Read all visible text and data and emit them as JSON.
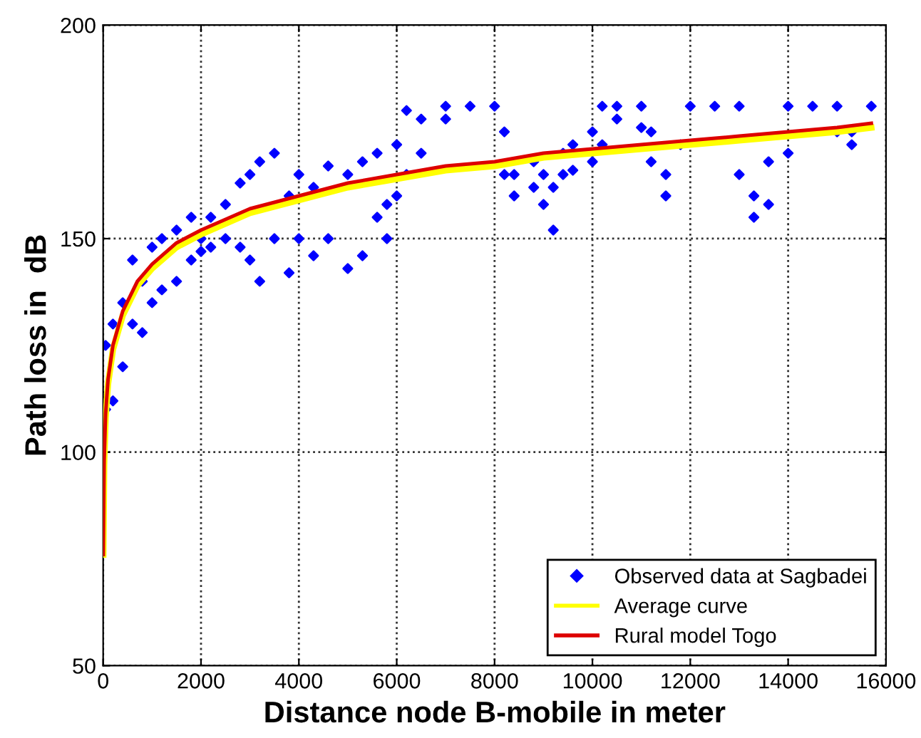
{
  "chart_data": {
    "type": "scatter",
    "xlabel": "Distance node B-mobile in meter",
    "ylabel": "Path loss in  dB",
    "xlim": [
      0,
      16000
    ],
    "ylim": [
      50,
      200
    ],
    "xticks": [
      0,
      2000,
      4000,
      6000,
      8000,
      10000,
      12000,
      14000,
      16000
    ],
    "yticks": [
      50,
      100,
      150,
      200
    ],
    "grid": true,
    "legend": "bottom right",
    "series": [
      {
        "name": "Observed data at Sagbadei",
        "marker": "diamond",
        "color": "#0000ff",
        "x": [
          50,
          50,
          200,
          200,
          400,
          400,
          600,
          600,
          800,
          800,
          1000,
          1000,
          1200,
          1200,
          1500,
          1500,
          1800,
          1800,
          2000,
          2000,
          2200,
          2200,
          2500,
          2500,
          2800,
          2800,
          3000,
          3000,
          3200,
          3200,
          3500,
          3500,
          3800,
          3800,
          4000,
          4000,
          4300,
          4300,
          4600,
          4600,
          5000,
          5000,
          5300,
          5300,
          5600,
          5600,
          5800,
          5800,
          6000,
          6000,
          6200,
          6200,
          6500,
          6500,
          7000,
          7000,
          7500,
          8000,
          8200,
          8200,
          8400,
          8400,
          8800,
          8800,
          9000,
          9000,
          9200,
          9200,
          9400,
          9400,
          9600,
          9600,
          10000,
          10000,
          10200,
          10200,
          10500,
          10500,
          11000,
          11000,
          11200,
          11200,
          11500,
          11500,
          11800,
          12000,
          12500,
          13000,
          13000,
          13300,
          13300,
          13600,
          13600,
          14000,
          14000,
          14500,
          15000,
          15000,
          15300,
          15300,
          15700
        ],
        "values": [
          110,
          125,
          130,
          112,
          135,
          120,
          145,
          130,
          140,
          128,
          148,
          135,
          150,
          138,
          152,
          140,
          155,
          145,
          150,
          147,
          155,
          148,
          158,
          150,
          163,
          148,
          165,
          145,
          168,
          140,
          170,
          150,
          160,
          142,
          165,
          150,
          162,
          146,
          167,
          150,
          165,
          143,
          168,
          146,
          170,
          155,
          158,
          150,
          172,
          160,
          180,
          165,
          178,
          170,
          181,
          178,
          181,
          181,
          175,
          165,
          165,
          160,
          168,
          162,
          165,
          158,
          162,
          152,
          170,
          165,
          172,
          166,
          175,
          168,
          181,
          172,
          181,
          178,
          181,
          176,
          175,
          168,
          165,
          160,
          172,
          181,
          181,
          181,
          165,
          160,
          155,
          168,
          158,
          181,
          170,
          181,
          181,
          175,
          175,
          172,
          181
        ]
      },
      {
        "name": "Average curve",
        "type": "line",
        "color": "#ffff00",
        "x": [
          3,
          20,
          50,
          100,
          200,
          400,
          700,
          1000,
          1500,
          2000,
          3000,
          4000,
          5000,
          6000,
          7000,
          8000,
          9000,
          10000,
          11000,
          12000,
          13000,
          14000,
          15000,
          15700
        ],
        "values": [
          76,
          97,
          108,
          116,
          124,
          132,
          139,
          143,
          148,
          151,
          156,
          159,
          162,
          164,
          166,
          167,
          169,
          170,
          171,
          172,
          173,
          174,
          175,
          176
        ]
      },
      {
        "name": "Rural model Togo",
        "type": "line",
        "color": "#dd0000",
        "x": [
          3,
          20,
          50,
          100,
          200,
          400,
          700,
          1000,
          1500,
          2000,
          3000,
          4000,
          5000,
          6000,
          7000,
          8000,
          9000,
          10000,
          11000,
          12000,
          13000,
          14000,
          15000,
          15700
        ],
        "values": [
          76,
          98,
          109,
          117,
          125,
          133,
          140,
          144,
          149,
          152,
          157,
          160,
          163,
          165,
          167,
          168,
          170,
          171,
          172,
          173,
          174,
          175,
          176,
          177
        ]
      }
    ]
  }
}
